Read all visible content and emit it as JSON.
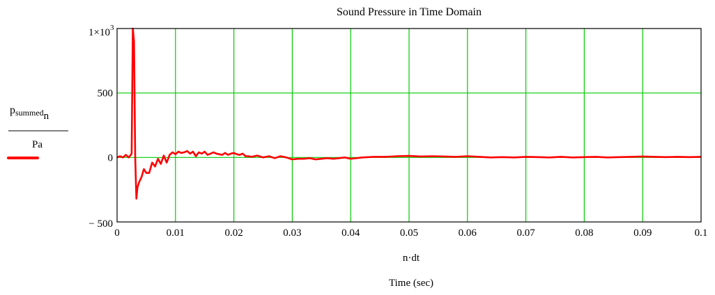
{
  "chart_data": {
    "type": "line",
    "title": "Sound Pressure in Time Domain",
    "xlabel": "n·dt",
    "xlabel_units": "Time (sec)",
    "ylabel": {
      "numerator": "p",
      "numerator_subscript": "summed",
      "numerator_subscript2": "n",
      "denominator": "Pa"
    },
    "xlim": [
      0,
      0.1
    ],
    "ylim": [
      -500,
      1000
    ],
    "x_ticks": [
      0,
      0.01,
      0.02,
      0.03,
      0.04,
      0.05,
      0.06,
      0.07,
      0.08,
      0.09,
      0.1
    ],
    "x_tick_labels": [
      "0",
      "0.01",
      "0.02",
      "0.03",
      "0.04",
      "0.05",
      "0.06",
      "0.07",
      "0.08",
      "0.09",
      "0.1"
    ],
    "y_ticks": [
      -500,
      0,
      500,
      1000
    ],
    "y_tick_labels": [
      "− 500",
      "0",
      "500",
      "1×10"
    ],
    "y_top_exponent": "3",
    "grid": true,
    "grid_color": "#00cc00",
    "legend_placement": "left",
    "series": [
      {
        "color": "#ff0000",
        "x": [
          0,
          0.0005,
          0.001,
          0.0015,
          0.002,
          0.0025,
          0.0027,
          0.0029,
          0.0031,
          0.0033,
          0.0035,
          0.0038,
          0.0042,
          0.0046,
          0.005,
          0.0055,
          0.006,
          0.0065,
          0.007,
          0.0075,
          0.008,
          0.0085,
          0.009,
          0.0095,
          0.01,
          0.0105,
          0.011,
          0.0115,
          0.012,
          0.0125,
          0.013,
          0.0135,
          0.014,
          0.0145,
          0.015,
          0.0155,
          0.016,
          0.0165,
          0.017,
          0.0175,
          0.018,
          0.0185,
          0.019,
          0.0195,
          0.02,
          0.0205,
          0.021,
          0.0215,
          0.022,
          0.0225,
          0.023,
          0.024,
          0.025,
          0.026,
          0.027,
          0.028,
          0.029,
          0.03,
          0.031,
          0.032,
          0.033,
          0.034,
          0.035,
          0.036,
          0.037,
          0.038,
          0.039,
          0.04,
          0.042,
          0.044,
          0.046,
          0.048,
          0.05,
          0.052,
          0.054,
          0.056,
          0.058,
          0.06,
          0.062,
          0.064,
          0.066,
          0.068,
          0.07,
          0.072,
          0.074,
          0.076,
          0.078,
          0.08,
          0.082,
          0.084,
          0.086,
          0.088,
          0.09,
          0.092,
          0.094,
          0.096,
          0.098,
          0.1
        ],
        "values": [
          0,
          10,
          0,
          20,
          0,
          30,
          1000,
          900,
          10,
          -320,
          -230,
          -190,
          -150,
          -90,
          -120,
          -120,
          -40,
          -70,
          -10,
          -50,
          15,
          -40,
          20,
          40,
          25,
          45,
          35,
          40,
          50,
          30,
          45,
          10,
          40,
          30,
          45,
          20,
          30,
          40,
          30,
          25,
          20,
          35,
          20,
          30,
          35,
          25,
          20,
          30,
          10,
          10,
          5,
          15,
          0,
          10,
          -5,
          10,
          0,
          -15,
          -10,
          -10,
          -5,
          -15,
          -10,
          -5,
          -10,
          -5,
          0,
          -10,
          0,
          5,
          5,
          10,
          12,
          8,
          10,
          8,
          5,
          10,
          5,
          0,
          3,
          0,
          5,
          3,
          0,
          5,
          0,
          3,
          5,
          0,
          3,
          5,
          8,
          5,
          3,
          5,
          3,
          5
        ]
      }
    ]
  }
}
